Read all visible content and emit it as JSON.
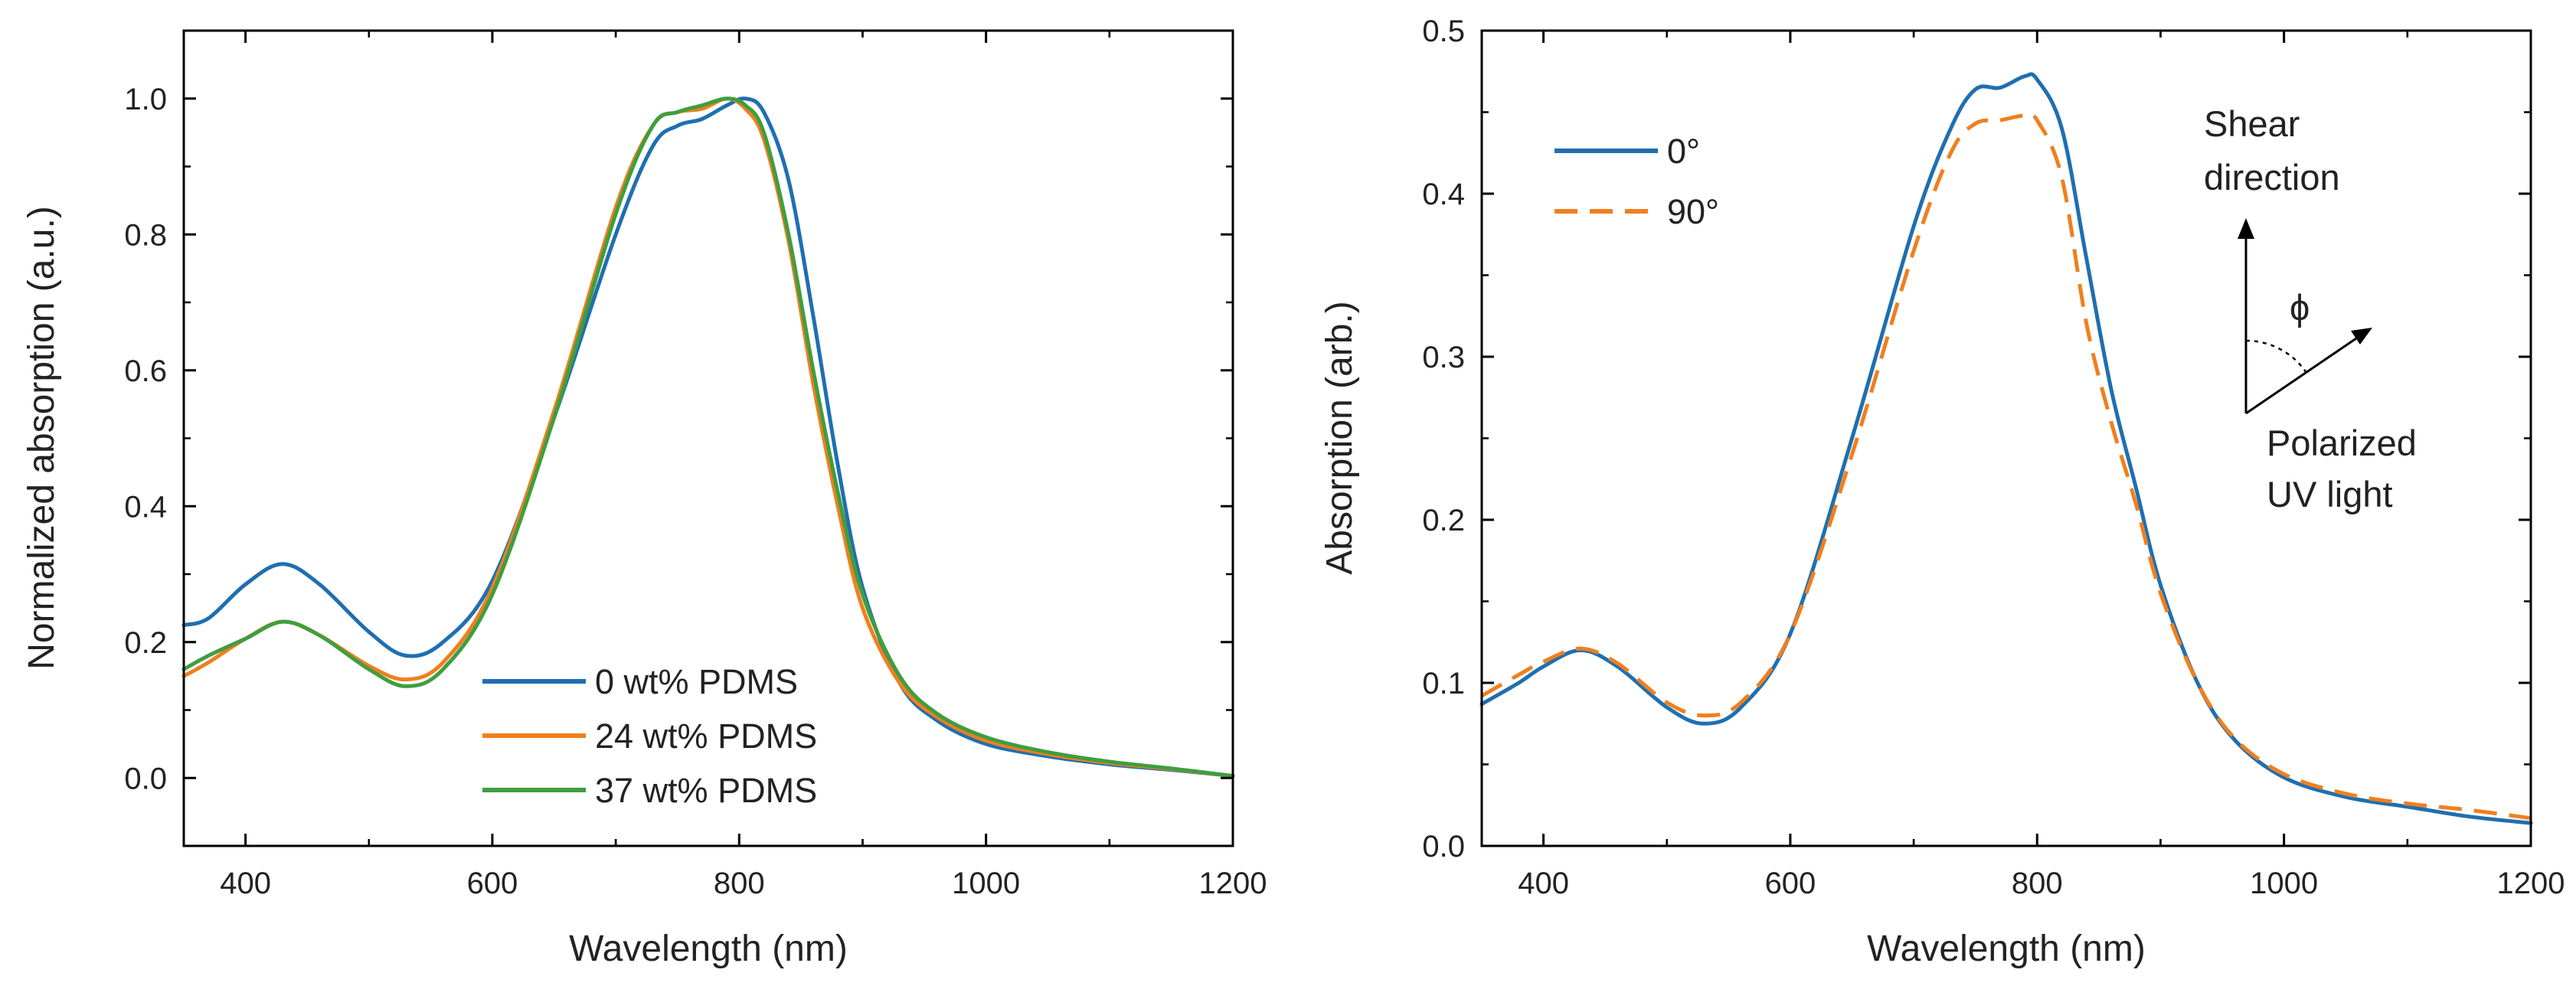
{
  "chart_data": [
    {
      "type": "line",
      "xlabel": "Wavelength (nm)",
      "ylabel": "Normalized absorption (a.u.)",
      "xlim": [
        350,
        1200
      ],
      "ylim": [
        -0.1,
        1.1
      ],
      "xticks": [
        400,
        600,
        800,
        1000,
        1200
      ],
      "xtick_labels": [
        "400",
        "600",
        "800",
        "1000",
        "1200"
      ],
      "yticks": [
        0.0,
        0.2,
        0.4,
        0.6,
        0.8,
        1.0
      ],
      "ytick_labels": [
        "0.0",
        "0.2",
        "0.4",
        "0.6",
        "0.8",
        "1.0"
      ],
      "grid": false,
      "legend_position": "lower-center",
      "series": [
        {
          "name": "0 wt% PDMS",
          "color": "#1f6fb0",
          "dash": "solid",
          "x": [
            350,
            370,
            400,
            430,
            460,
            500,
            530,
            560,
            600,
            650,
            700,
            730,
            750,
            770,
            790,
            805,
            820,
            840,
            860,
            880,
            900,
            930,
            960,
            1000,
            1050,
            1100,
            1150,
            1200
          ],
          "y": [
            0.225,
            0.235,
            0.285,
            0.315,
            0.285,
            0.215,
            0.18,
            0.2,
            0.29,
            0.53,
            0.8,
            0.93,
            0.96,
            0.97,
            0.99,
            1.0,
            0.98,
            0.88,
            0.68,
            0.46,
            0.28,
            0.14,
            0.085,
            0.05,
            0.032,
            0.02,
            0.012,
            0.003
          ]
        },
        {
          "name": "24 wt% PDMS",
          "color": "#f07f1e",
          "dash": "solid",
          "x": [
            350,
            370,
            400,
            430,
            460,
            500,
            530,
            560,
            600,
            650,
            700,
            730,
            750,
            770,
            790,
            805,
            820,
            840,
            860,
            880,
            900,
            930,
            960,
            1000,
            1050,
            1100,
            1150,
            1200
          ],
          "y": [
            0.15,
            0.17,
            0.205,
            0.23,
            0.21,
            0.165,
            0.145,
            0.17,
            0.28,
            0.54,
            0.84,
            0.96,
            0.98,
            0.985,
            1.0,
            0.985,
            0.94,
            0.79,
            0.58,
            0.4,
            0.25,
            0.14,
            0.09,
            0.055,
            0.035,
            0.022,
            0.013,
            0.003
          ]
        },
        {
          "name": "37 wt% PDMS",
          "color": "#3f9e3f",
          "dash": "solid",
          "x": [
            350,
            370,
            400,
            430,
            460,
            500,
            530,
            560,
            600,
            650,
            700,
            730,
            750,
            770,
            790,
            805,
            820,
            840,
            860,
            880,
            900,
            930,
            960,
            1000,
            1050,
            1100,
            1150,
            1200
          ],
          "y": [
            0.16,
            0.18,
            0.205,
            0.23,
            0.21,
            0.16,
            0.135,
            0.16,
            0.27,
            0.53,
            0.83,
            0.96,
            0.98,
            0.99,
            1.0,
            0.99,
            0.95,
            0.8,
            0.6,
            0.42,
            0.27,
            0.15,
            0.095,
            0.06,
            0.038,
            0.024,
            0.014,
            0.003
          ]
        }
      ]
    },
    {
      "type": "line",
      "xlabel": "Wavelength (nm)",
      "ylabel": "Absorption (arb.)",
      "xlim": [
        350,
        1200
      ],
      "ylim": [
        0.0,
        0.5
      ],
      "xticks": [
        400,
        600,
        800,
        1000,
        1200
      ],
      "xtick_labels": [
        "400",
        "600",
        "800",
        "1000",
        "1200"
      ],
      "yticks": [
        0.0,
        0.1,
        0.2,
        0.3,
        0.4,
        0.5
      ],
      "ytick_labels": [
        "0.0",
        "0.1",
        "0.2",
        "0.3",
        "0.4",
        "0.5"
      ],
      "grid": false,
      "legend_position": "top-left",
      "series": [
        {
          "name": "0°",
          "color": "#1f6fb0",
          "dash": "solid",
          "x": [
            350,
            380,
            400,
            430,
            460,
            500,
            530,
            560,
            600,
            650,
            700,
            730,
            750,
            770,
            790,
            800,
            820,
            840,
            860,
            880,
            900,
            930,
            960,
            1000,
            1050,
            1100,
            1150,
            1200
          ],
          "y": [
            0.087,
            0.1,
            0.11,
            0.12,
            0.11,
            0.085,
            0.075,
            0.085,
            0.13,
            0.25,
            0.38,
            0.44,
            0.464,
            0.465,
            0.472,
            0.47,
            0.44,
            0.36,
            0.28,
            0.22,
            0.16,
            0.1,
            0.065,
            0.042,
            0.03,
            0.024,
            0.018,
            0.014
          ]
        },
        {
          "name": "90°",
          "color": "#f07f1e",
          "dash": "dashed",
          "x": [
            350,
            380,
            400,
            430,
            460,
            500,
            530,
            560,
            600,
            650,
            700,
            730,
            750,
            770,
            790,
            800,
            820,
            840,
            860,
            880,
            900,
            930,
            960,
            1000,
            1050,
            1100,
            1150,
            1200
          ],
          "y": [
            0.092,
            0.105,
            0.113,
            0.121,
            0.112,
            0.088,
            0.08,
            0.088,
            0.13,
            0.24,
            0.365,
            0.425,
            0.443,
            0.445,
            0.448,
            0.445,
            0.41,
            0.32,
            0.26,
            0.21,
            0.155,
            0.1,
            0.066,
            0.044,
            0.032,
            0.026,
            0.022,
            0.017
          ]
        }
      ],
      "inset_labels": {
        "shear": [
          "Shear",
          "direction"
        ],
        "phi": "ϕ",
        "polarized": [
          "Polarized",
          "UV light"
        ]
      }
    }
  ]
}
